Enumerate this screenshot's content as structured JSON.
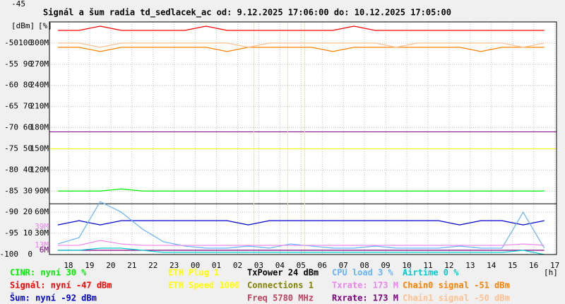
{
  "chart_data": {
    "type": "line",
    "title": "Signál a šum radia td_sedlacek_ac od: 9.12.2025 17:06:00 do: 10.12.2025 17:05:00",
    "y_unit": "[dBm]",
    "y2_unit": "[%]",
    "x_unit": "[h]",
    "x": [
      17.5,
      18.5,
      19.5,
      20.5,
      21.5,
      22.5,
      23.5,
      24.5,
      25.5,
      26.5,
      27.5,
      28.5,
      29.5,
      30.5,
      31.5,
      32.5,
      33.5,
      34.5,
      35.5,
      36.5,
      37.5,
      38.5,
      39.5,
      40.5
    ],
    "xlim": [
      17.1,
      41.08
    ],
    "xticks": [
      18,
      19,
      20,
      21,
      22,
      23,
      {
        "value": 24,
        "label": "00"
      },
      {
        "value": 25,
        "label": "01"
      },
      {
        "value": 26,
        "label": "02"
      },
      {
        "value": 27,
        "label": "03"
      },
      {
        "value": 28,
        "label": "04"
      },
      {
        "value": 29,
        "label": "05"
      },
      {
        "value": 30,
        "label": "06"
      },
      {
        "value": 31,
        "label": "07"
      },
      {
        "value": 32,
        "label": "08"
      },
      {
        "value": 33,
        "label": "09"
      },
      {
        "value": 34,
        "label": "10"
      },
      {
        "value": 35,
        "label": "11"
      },
      {
        "value": 36,
        "label": "12"
      },
      {
        "value": 37,
        "label": "13"
      },
      {
        "value": 38,
        "label": "14"
      },
      {
        "value": 39,
        "label": "15"
      },
      {
        "value": 40,
        "label": "16"
      },
      {
        "value": 41,
        "label": "17"
      }
    ],
    "ylim": [
      -100,
      -45
    ],
    "yticks": [
      -45,
      -50,
      -55,
      -60,
      -65,
      -70,
      -75,
      -80,
      -85,
      -90,
      -95,
      -100
    ],
    "y2lim": [
      0,
      110
    ],
    "y2ticks": [
      100,
      90,
      80,
      70,
      60,
      50,
      40,
      30,
      20,
      10,
      0
    ],
    "y3lim": [
      0,
      330
    ],
    "y3ticks": [
      {
        "value": 300,
        "label": "300M"
      },
      {
        "value": 270,
        "label": "270M"
      },
      {
        "value": 240,
        "label": "240M"
      },
      {
        "value": 210,
        "label": "210M"
      },
      {
        "value": 180,
        "label": "180M"
      },
      {
        "value": 150,
        "label": "150M"
      },
      {
        "value": 120,
        "label": "120M"
      },
      {
        "value": 90,
        "label": "90M"
      },
      {
        "value": 60,
        "label": "60M"
      },
      {
        "value": 30,
        "label": "30M"
      }
    ],
    "grid": true,
    "hlines": [
      {
        "value": -71,
        "color": "#800080"
      },
      {
        "value": -75,
        "color": "#ffff00"
      },
      {
        "value": -88,
        "color": "#000000"
      }
    ],
    "vlines": [
      {
        "value": 26.77,
        "color": "#ffff00"
      },
      {
        "value": 28.37,
        "color": "#ffff00"
      },
      {
        "value": 29.17,
        "color": "#ffff00"
      }
    ],
    "rate_markers": [
      {
        "value": 39,
        "label": "39M",
        "color": "#ee82ee"
      },
      {
        "value": 13,
        "label": "13M",
        "color": "#ee82ee"
      },
      {
        "value": 6,
        "label": "6M",
        "color": "#800080"
      }
    ],
    "series": [
      {
        "name": "CINR: nyní 30 %",
        "color": "#00ee00",
        "axis": "y2",
        "values": [
          30,
          30,
          30,
          31,
          30,
          30,
          30,
          30,
          30,
          30,
          30,
          30,
          30,
          30,
          30,
          30,
          30,
          30,
          30,
          30,
          30,
          30,
          30,
          30
        ]
      },
      {
        "name": "Signál: nyní -47 dBm",
        "color": "#ff0000",
        "values": [
          -47,
          -47,
          -46,
          -47,
          -47,
          -47,
          -47,
          -46,
          -47,
          -47,
          -47,
          -47,
          -47,
          -47,
          -46,
          -47,
          -47,
          -47,
          -47,
          -47,
          -47,
          -47,
          -47,
          -47
        ]
      },
      {
        "name": "Šum: nyní -92 dBm",
        "color": "#0000cc",
        "values": [
          -93,
          -92,
          -93,
          -92,
          -92,
          -92,
          -92,
          -92,
          -92,
          -93,
          -92,
          -92,
          -92,
          -92,
          -92,
          -92,
          -92,
          -92,
          -92,
          -93,
          -92,
          -92,
          -93,
          -92
        ]
      },
      {
        "name": "CPU load 3 %",
        "color": "#66b3ff",
        "axis": "y2",
        "values": [
          5,
          8,
          25,
          20,
          12,
          6,
          4,
          3,
          3,
          4,
          3,
          5,
          4,
          3,
          3,
          4,
          3,
          3,
          3,
          4,
          3,
          3,
          20,
          3
        ]
      },
      {
        "name": "Txrate: 173 M",
        "color": "#ee82ee",
        "axis": "y3",
        "values": [
          13,
          13,
          20,
          15,
          13,
          13,
          13,
          13,
          13,
          13,
          13,
          13,
          13,
          13,
          13,
          13,
          13,
          13,
          13,
          13,
          13,
          13,
          15,
          13
        ]
      },
      {
        "name": "Rxrate: 173 M",
        "color": "#800080",
        "axis": "y3",
        "values": [
          6,
          6,
          6,
          6,
          6,
          6,
          6,
          6,
          6,
          6,
          6,
          6,
          6,
          6,
          6,
          6,
          6,
          6,
          6,
          6,
          6,
          6,
          6,
          6
        ]
      },
      {
        "name": "Airtime 0 %",
        "color": "#00cccc",
        "axis": "y2",
        "values": [
          2,
          2,
          3,
          3,
          2,
          1,
          1,
          1,
          1,
          1,
          1,
          1,
          1,
          1,
          1,
          1,
          1,
          1,
          1,
          1,
          1,
          1,
          2,
          0
        ]
      },
      {
        "name": "Chain0 signal -51 dBm",
        "color": "#ff8000",
        "values": [
          -51,
          -51,
          -52,
          -51,
          -51,
          -51,
          -51,
          -51,
          -52,
          -51,
          -51,
          -51,
          -51,
          -52,
          -51,
          -51,
          -51,
          -51,
          -51,
          -51,
          -52,
          -51,
          -51,
          -51
        ]
      },
      {
        "name": "Chain1 signal -50 dBm",
        "color": "#ffc090",
        "values": [
          -50,
          -50,
          -51,
          -50,
          -50,
          -50,
          -50,
          -50,
          -50,
          -51,
          -50,
          -50,
          -50,
          -50,
          -50,
          -50,
          -51,
          -50,
          -50,
          -50,
          -50,
          -50,
          -51,
          -50
        ]
      }
    ],
    "info": [
      {
        "text": "ETH Plug 1",
        "color": "#ffff00"
      },
      {
        "text": "ETH Speed 1000",
        "color": "#ffff00"
      },
      {
        "text": "TxPower 24 dBm",
        "color": "#000000"
      },
      {
        "text": "Connections 1",
        "color": "#808000"
      },
      {
        "text": "Freq 5780 MHz",
        "color": "#c04060"
      }
    ]
  }
}
